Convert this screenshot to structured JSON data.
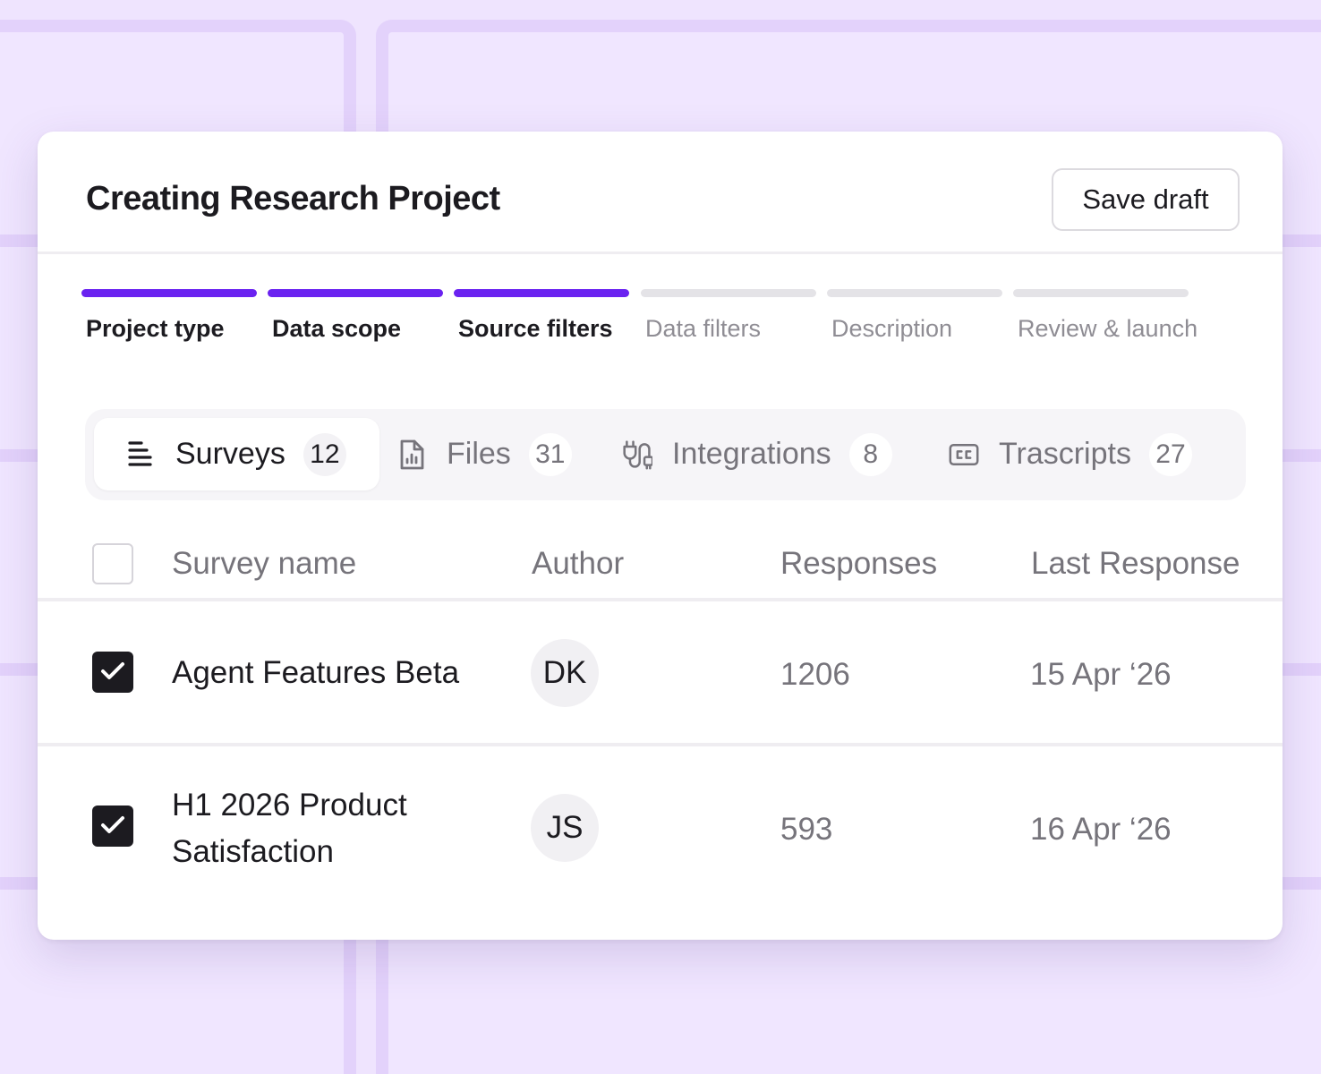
{
  "header": {
    "title": "Creating Research Project",
    "save_label": "Save draft"
  },
  "stepper": {
    "steps": [
      {
        "label": "Project type",
        "done": true
      },
      {
        "label": "Data scope",
        "done": true
      },
      {
        "label": "Source filters",
        "done": true
      },
      {
        "label": "Data filters",
        "done": false
      },
      {
        "label": "Description",
        "done": false
      },
      {
        "label": "Review & launch",
        "done": false
      }
    ]
  },
  "tabs": [
    {
      "label": "Surveys",
      "count": "12",
      "icon": "list-icon",
      "active": true
    },
    {
      "label": "Files",
      "count": "31",
      "icon": "file-chart-icon",
      "active": false
    },
    {
      "label": "Integrations",
      "count": "8",
      "icon": "plug-icon",
      "active": false
    },
    {
      "label": "Trascripts",
      "count": "27",
      "icon": "closed-caption-icon",
      "active": false
    }
  ],
  "table": {
    "columns": [
      "Survey name",
      "Author",
      "Responses",
      "Last Response"
    ],
    "rows": [
      {
        "name": "Agent Features Beta",
        "author": "DK",
        "responses": "1206",
        "last_response": "15 Apr ‘26",
        "checked": true
      },
      {
        "name": "H1 2026 Product Satisfaction",
        "author": "JS",
        "responses": "593",
        "last_response": "16 Apr ‘26",
        "checked": true
      }
    ]
  },
  "colors": {
    "accent": "#6a22f0",
    "background": "#efe4fe",
    "checkbox_checked": "#1c1b20"
  }
}
